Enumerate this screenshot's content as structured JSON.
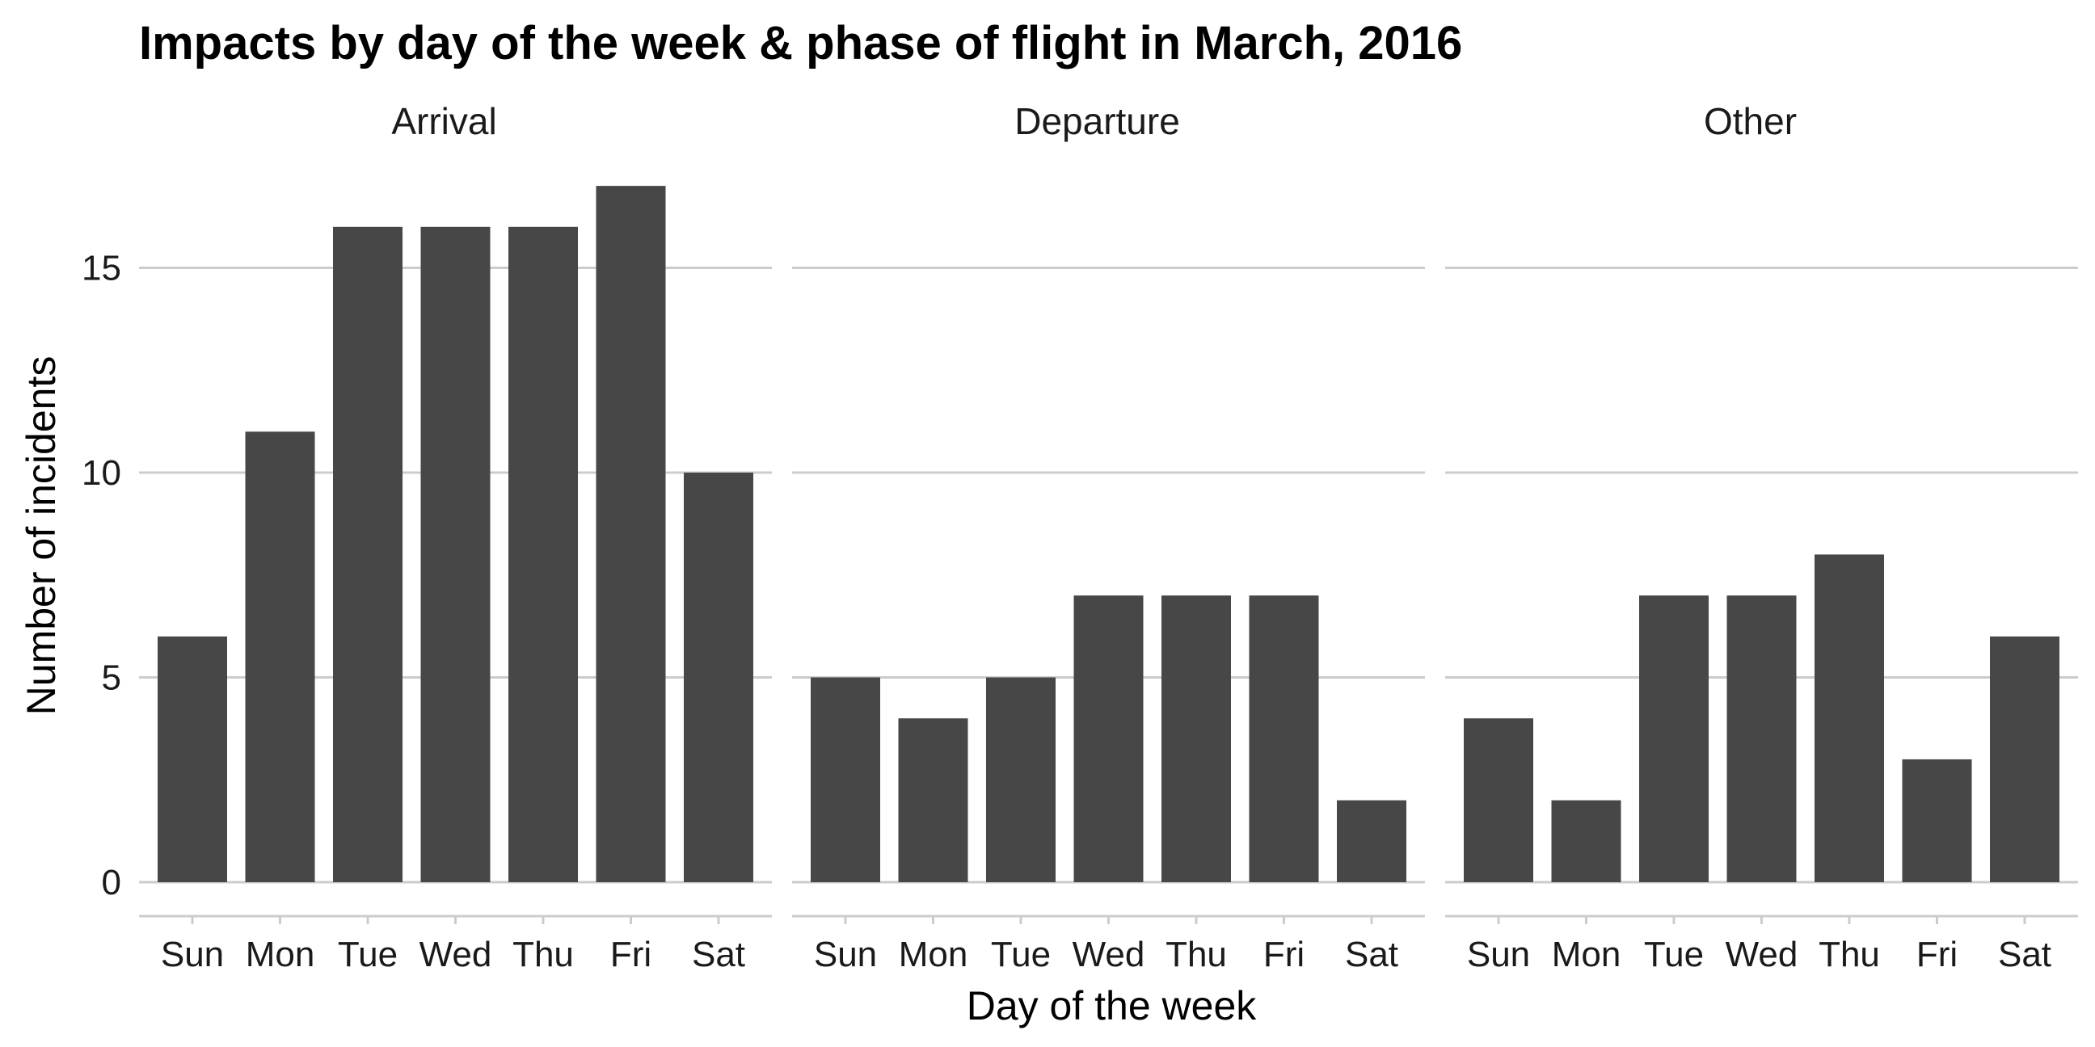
{
  "chart_data": {
    "type": "bar",
    "title": "Impacts by day of the week & phase of flight in March, 2016",
    "xlabel": "Day of the week",
    "ylabel": "Number of incidents",
    "categories": [
      "Sun",
      "Mon",
      "Tue",
      "Wed",
      "Thu",
      "Fri",
      "Sat"
    ],
    "ylim": [
      0,
      17
    ],
    "yticks": [
      0,
      5,
      10,
      15
    ],
    "grid": true,
    "bar_color": "#474747",
    "grid_color": "#cccccc",
    "facets": [
      {
        "name": "Arrival",
        "values": [
          6,
          11,
          16,
          16,
          16,
          17,
          10
        ]
      },
      {
        "name": "Departure",
        "values": [
          5,
          4,
          5,
          7,
          7,
          7,
          2
        ]
      },
      {
        "name": "Other",
        "values": [
          4,
          2,
          7,
          7,
          8,
          3,
          6
        ]
      }
    ]
  }
}
